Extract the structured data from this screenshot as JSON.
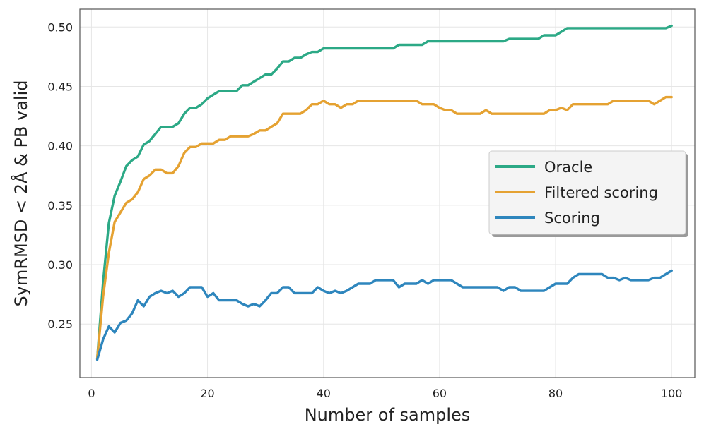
{
  "chart_data": {
    "type": "line",
    "title": "",
    "xlabel": "Number of samples",
    "ylabel": "SymRMSD < 2Å & PB valid",
    "xlim": [
      -2,
      104
    ],
    "ylim": [
      0.205,
      0.515
    ],
    "xticks": [
      0,
      20,
      40,
      60,
      80,
      100
    ],
    "yticks": [
      0.25,
      0.3,
      0.35,
      0.4,
      0.45,
      0.5
    ],
    "xtick_labels": [
      "0",
      "20",
      "40",
      "60",
      "80",
      "100"
    ],
    "ytick_labels": [
      "0.25",
      "0.30",
      "0.35",
      "0.40",
      "0.45",
      "0.50"
    ],
    "grid": true,
    "legend_position": "center-right",
    "series": [
      {
        "name": "Oracle",
        "color": "#2ca986",
        "points": [
          [
            1,
            0.221
          ],
          [
            2,
            0.285
          ],
          [
            3,
            0.335
          ],
          [
            4,
            0.358
          ],
          [
            5,
            0.37
          ],
          [
            6,
            0.383
          ],
          [
            7,
            0.388
          ],
          [
            8,
            0.391
          ],
          [
            9,
            0.401
          ],
          [
            10,
            0.404
          ],
          [
            11,
            0.41
          ],
          [
            12,
            0.416
          ],
          [
            13,
            0.416
          ],
          [
            14,
            0.416
          ],
          [
            15,
            0.419
          ],
          [
            16,
            0.427
          ],
          [
            17,
            0.432
          ],
          [
            18,
            0.432
          ],
          [
            19,
            0.435
          ],
          [
            20,
            0.44
          ],
          [
            21,
            0.443
          ],
          [
            22,
            0.446
          ],
          [
            23,
            0.446
          ],
          [
            24,
            0.446
          ],
          [
            25,
            0.446
          ],
          [
            26,
            0.451
          ],
          [
            27,
            0.451
          ],
          [
            28,
            0.454
          ],
          [
            29,
            0.457
          ],
          [
            30,
            0.46
          ],
          [
            31,
            0.46
          ],
          [
            32,
            0.465
          ],
          [
            33,
            0.471
          ],
          [
            34,
            0.471
          ],
          [
            35,
            0.474
          ],
          [
            36,
            0.474
          ],
          [
            37,
            0.477
          ],
          [
            38,
            0.479
          ],
          [
            39,
            0.479
          ],
          [
            40,
            0.482
          ],
          [
            50,
            0.482
          ],
          [
            52,
            0.482
          ],
          [
            53,
            0.485
          ],
          [
            57,
            0.485
          ],
          [
            58,
            0.488
          ],
          [
            70,
            0.488
          ],
          [
            71,
            0.488
          ],
          [
            72,
            0.49
          ],
          [
            77,
            0.49
          ],
          [
            78,
            0.493
          ],
          [
            80,
            0.493
          ],
          [
            81,
            0.496
          ],
          [
            82,
            0.499
          ],
          [
            99,
            0.499
          ],
          [
            100,
            0.501
          ]
        ]
      },
      {
        "name": "Filtered scoring",
        "color": "#e5a232",
        "points": [
          [
            1,
            0.221
          ],
          [
            2,
            0.273
          ],
          [
            3,
            0.31
          ],
          [
            4,
            0.336
          ],
          [
            5,
            0.344
          ],
          [
            6,
            0.352
          ],
          [
            7,
            0.355
          ],
          [
            8,
            0.361
          ],
          [
            9,
            0.372
          ],
          [
            10,
            0.375
          ],
          [
            11,
            0.38
          ],
          [
            12,
            0.38
          ],
          [
            13,
            0.377
          ],
          [
            14,
            0.377
          ],
          [
            15,
            0.383
          ],
          [
            16,
            0.394
          ],
          [
            17,
            0.399
          ],
          [
            18,
            0.399
          ],
          [
            19,
            0.402
          ],
          [
            20,
            0.402
          ],
          [
            21,
            0.402
          ],
          [
            22,
            0.405
          ],
          [
            23,
            0.405
          ],
          [
            24,
            0.408
          ],
          [
            25,
            0.408
          ],
          [
            26,
            0.408
          ],
          [
            27,
            0.408
          ],
          [
            28,
            0.41
          ],
          [
            29,
            0.413
          ],
          [
            30,
            0.413
          ],
          [
            31,
            0.416
          ],
          [
            32,
            0.419
          ],
          [
            33,
            0.427
          ],
          [
            34,
            0.427
          ],
          [
            35,
            0.427
          ],
          [
            36,
            0.427
          ],
          [
            37,
            0.43
          ],
          [
            38,
            0.435
          ],
          [
            39,
            0.435
          ],
          [
            40,
            0.438
          ],
          [
            41,
            0.435
          ],
          [
            42,
            0.435
          ],
          [
            43,
            0.432
          ],
          [
            44,
            0.435
          ],
          [
            45,
            0.435
          ],
          [
            46,
            0.438
          ],
          [
            55,
            0.438
          ],
          [
            56,
            0.438
          ],
          [
            57,
            0.435
          ],
          [
            59,
            0.435
          ],
          [
            60,
            0.432
          ],
          [
            61,
            0.43
          ],
          [
            62,
            0.43
          ],
          [
            63,
            0.427
          ],
          [
            67,
            0.427
          ],
          [
            68,
            0.43
          ],
          [
            69,
            0.427
          ],
          [
            77,
            0.427
          ],
          [
            78,
            0.427
          ],
          [
            79,
            0.43
          ],
          [
            80,
            0.43
          ],
          [
            81,
            0.432
          ],
          [
            82,
            0.43
          ],
          [
            83,
            0.435
          ],
          [
            89,
            0.435
          ],
          [
            90,
            0.438
          ],
          [
            96,
            0.438
          ],
          [
            97,
            0.435
          ],
          [
            98,
            0.438
          ],
          [
            99,
            0.441
          ],
          [
            100,
            0.441
          ]
        ]
      },
      {
        "name": "Scoring",
        "color": "#2e86bd",
        "points": [
          [
            1,
            0.22
          ],
          [
            2,
            0.237
          ],
          [
            3,
            0.248
          ],
          [
            4,
            0.243
          ],
          [
            5,
            0.251
          ],
          [
            6,
            0.253
          ],
          [
            7,
            0.259
          ],
          [
            8,
            0.27
          ],
          [
            9,
            0.265
          ],
          [
            10,
            0.273
          ],
          [
            11,
            0.276
          ],
          [
            12,
            0.278
          ],
          [
            13,
            0.276
          ],
          [
            14,
            0.278
          ],
          [
            15,
            0.273
          ],
          [
            16,
            0.276
          ],
          [
            17,
            0.281
          ],
          [
            18,
            0.281
          ],
          [
            19,
            0.281
          ],
          [
            20,
            0.273
          ],
          [
            21,
            0.276
          ],
          [
            22,
            0.27
          ],
          [
            23,
            0.27
          ],
          [
            24,
            0.27
          ],
          [
            25,
            0.27
          ],
          [
            26,
            0.267
          ],
          [
            27,
            0.265
          ],
          [
            28,
            0.267
          ],
          [
            29,
            0.265
          ],
          [
            30,
            0.27
          ],
          [
            31,
            0.276
          ],
          [
            32,
            0.276
          ],
          [
            33,
            0.281
          ],
          [
            34,
            0.281
          ],
          [
            35,
            0.276
          ],
          [
            36,
            0.276
          ],
          [
            37,
            0.276
          ],
          [
            38,
            0.276
          ],
          [
            39,
            0.281
          ],
          [
            40,
            0.278
          ],
          [
            41,
            0.276
          ],
          [
            42,
            0.278
          ],
          [
            43,
            0.276
          ],
          [
            44,
            0.278
          ],
          [
            45,
            0.281
          ],
          [
            46,
            0.284
          ],
          [
            47,
            0.284
          ],
          [
            48,
            0.284
          ],
          [
            49,
            0.287
          ],
          [
            50,
            0.287
          ],
          [
            51,
            0.287
          ],
          [
            52,
            0.287
          ],
          [
            53,
            0.281
          ],
          [
            54,
            0.284
          ],
          [
            55,
            0.284
          ],
          [
            56,
            0.284
          ],
          [
            57,
            0.287
          ],
          [
            58,
            0.284
          ],
          [
            59,
            0.287
          ],
          [
            60,
            0.287
          ],
          [
            61,
            0.287
          ],
          [
            62,
            0.287
          ],
          [
            63,
            0.284
          ],
          [
            64,
            0.281
          ],
          [
            70,
            0.281
          ],
          [
            71,
            0.278
          ],
          [
            72,
            0.281
          ],
          [
            73,
            0.281
          ],
          [
            74,
            0.278
          ],
          [
            78,
            0.278
          ],
          [
            79,
            0.281
          ],
          [
            80,
            0.284
          ],
          [
            81,
            0.284
          ],
          [
            82,
            0.284
          ],
          [
            83,
            0.289
          ],
          [
            84,
            0.292
          ],
          [
            85,
            0.292
          ],
          [
            88,
            0.292
          ],
          [
            89,
            0.289
          ],
          [
            90,
            0.289
          ],
          [
            91,
            0.287
          ],
          [
            92,
            0.289
          ],
          [
            93,
            0.287
          ],
          [
            96,
            0.287
          ],
          [
            97,
            0.289
          ],
          [
            98,
            0.289
          ],
          [
            99,
            0.292
          ],
          [
            100,
            0.295
          ]
        ]
      }
    ]
  }
}
